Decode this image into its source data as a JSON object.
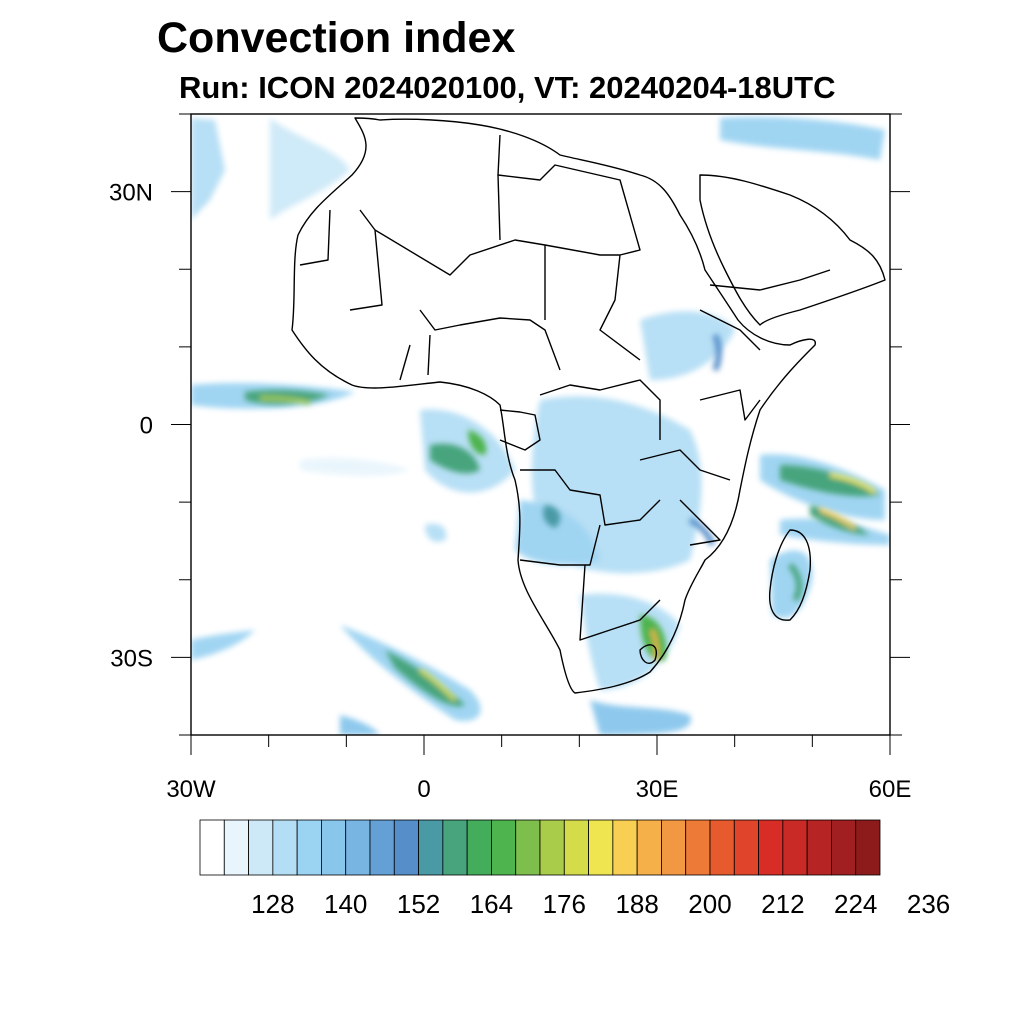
{
  "title": "Convection index",
  "subtitle": "Run: ICON 2024020100,  VT: 20240204-18UTC",
  "map": {
    "region": "Africa",
    "lon_range": [
      -30,
      60
    ],
    "lat_range": [
      -40,
      40
    ],
    "lon_ticks": [
      {
        "value": -30,
        "label": "30W"
      },
      {
        "value": 0,
        "label": "0"
      },
      {
        "value": 30,
        "label": "30E"
      },
      {
        "value": 60,
        "label": "60E"
      }
    ],
    "lat_ticks": [
      {
        "value": 30,
        "label": "30N"
      },
      {
        "value": 0,
        "label": "0"
      },
      {
        "value": -30,
        "label": "30S"
      }
    ],
    "colors": {
      "land_border": "#000000",
      "frame": "#000000",
      "background": "#ffffff"
    }
  },
  "colorbar": {
    "labels": [
      "128",
      "140",
      "152",
      "164",
      "176",
      "188",
      "200",
      "212",
      "224",
      "236"
    ],
    "colors": [
      "#ffffff",
      "#e8f5fc",
      "#cde9f8",
      "#b4def5",
      "#9bd3f2",
      "#88c6ec",
      "#78b5e3",
      "#649fd6",
      "#558ec9",
      "#4a9aa6",
      "#47a47d",
      "#43ad5c",
      "#4db44e",
      "#7dbe4c",
      "#a9cd4a",
      "#d5dc4a",
      "#efe550",
      "#f8cf52",
      "#f6b04a",
      "#f39842",
      "#ee7a38",
      "#e65a2d",
      "#e0442a",
      "#d82d27",
      "#c92a26",
      "#b62523",
      "#a21f21",
      "#8e1b1b"
    ]
  }
}
